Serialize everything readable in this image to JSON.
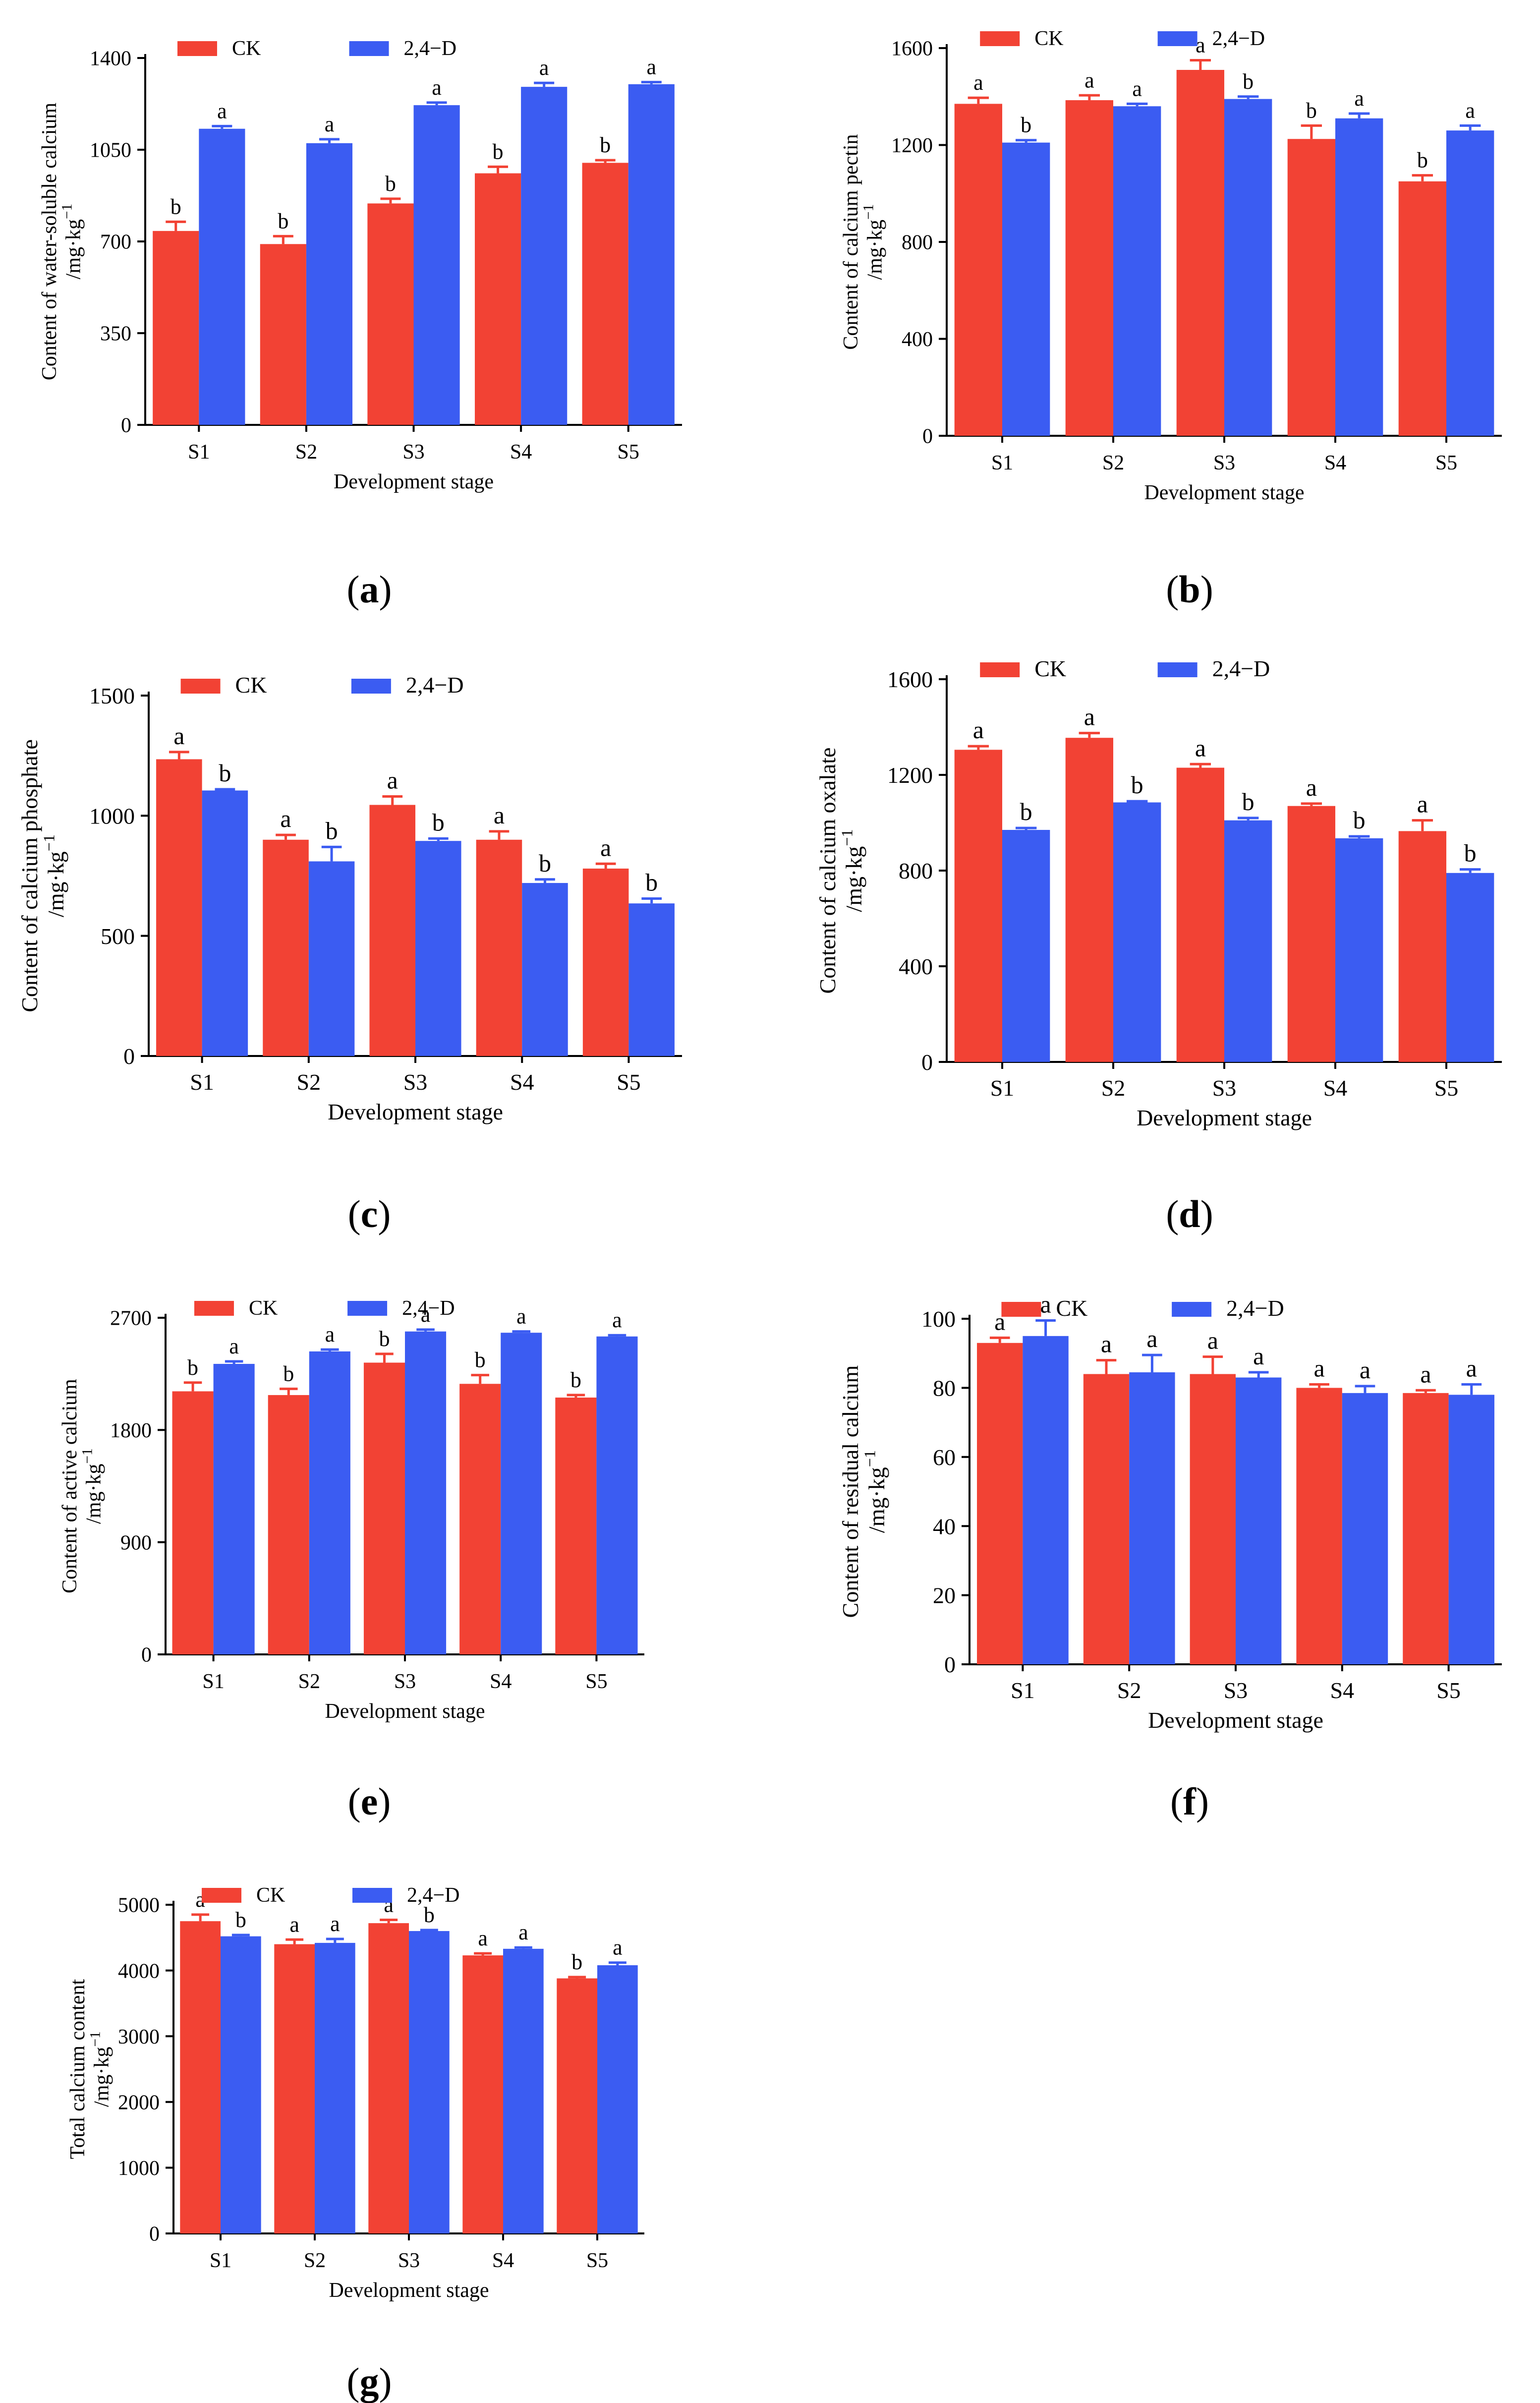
{
  "figure": {
    "colors": {
      "CK": "#f24234",
      "2,4-D": "#3b5cf2"
    },
    "panels": [
      {
        "id": "a",
        "label_open": "(",
        "letter": "a",
        "label_close": ")"
      },
      {
        "id": "b",
        "label_open": "(",
        "letter": "b",
        "label_close": ")"
      },
      {
        "id": "c",
        "label_open": "(",
        "letter": "c",
        "label_close": ")"
      },
      {
        "id": "d",
        "label_open": "(",
        "letter": "d",
        "label_close": ")"
      },
      {
        "id": "e",
        "label_open": "(",
        "letter": "e",
        "label_close": ")"
      },
      {
        "id": "f",
        "label_open": "(",
        "letter": "f",
        "label_close": ")"
      },
      {
        "id": "g",
        "label_open": "(",
        "letter": "g",
        "label_close": ")"
      }
    ]
  },
  "chart_data": [
    {
      "panel": "a",
      "type": "bar",
      "categories": [
        "S1",
        "S2",
        "S3",
        "S4",
        "S5"
      ],
      "xlabel": "Development stage",
      "ylabel_line1": "Content of water-soluble calcium",
      "ylabel_line2": "/mg·kg",
      "ylabel_sup": "−1",
      "ylim": [
        0,
        1400
      ],
      "yticks": [
        0,
        350,
        700,
        1050,
        1400
      ],
      "grid": false,
      "legend": "top",
      "series": [
        {
          "name": "CK",
          "values": [
            740,
            690,
            845,
            960,
            1000
          ],
          "errors": [
            35,
            30,
            18,
            25,
            10
          ],
          "letters": [
            "b",
            "b",
            "b",
            "b",
            "b"
          ]
        },
        {
          "name": "2,4−D",
          "values": [
            1130,
            1075,
            1220,
            1290,
            1300
          ],
          "errors": [
            10,
            15,
            10,
            15,
            8
          ],
          "letters": [
            "a",
            "a",
            "a",
            "a",
            "a"
          ]
        }
      ]
    },
    {
      "panel": "b",
      "type": "bar",
      "categories": [
        "S1",
        "S2",
        "S3",
        "S4",
        "S5"
      ],
      "xlabel": "Development stage",
      "ylabel_line1": "Content of calcium pectin",
      "ylabel_line2": "/mg·kg",
      "ylabel_sup": "−1",
      "ylim": [
        0,
        1600
      ],
      "yticks": [
        0,
        400,
        800,
        1200,
        1600
      ],
      "grid": false,
      "legend": "top",
      "series": [
        {
          "name": "CK",
          "values": [
            1370,
            1385,
            1510,
            1225,
            1050
          ],
          "errors": [
            25,
            20,
            40,
            55,
            25
          ],
          "letters": [
            "a",
            "a",
            "a",
            "b",
            "b"
          ]
        },
        {
          "name": "2,4−D",
          "values": [
            1210,
            1360,
            1390,
            1310,
            1260
          ],
          "errors": [
            10,
            10,
            10,
            20,
            20
          ],
          "letters": [
            "b",
            "a",
            "b",
            "a",
            "a"
          ]
        }
      ]
    },
    {
      "panel": "c",
      "type": "bar",
      "categories": [
        "S1",
        "S2",
        "S3",
        "S4",
        "S5"
      ],
      "xlabel": "Development stage",
      "ylabel_line1": "Content of calcium phosphate",
      "ylabel_line2": "/mg·kg",
      "ylabel_sup": "−1",
      "ylim": [
        0,
        1500
      ],
      "yticks": [
        0,
        500,
        1000,
        1500
      ],
      "grid": false,
      "legend": "top",
      "series": [
        {
          "name": "CK",
          "values": [
            1235,
            900,
            1045,
            900,
            780
          ],
          "errors": [
            30,
            20,
            35,
            35,
            20
          ],
          "letters": [
            "a",
            "a",
            "a",
            "a",
            "a"
          ]
        },
        {
          "name": "2,4−D",
          "values": [
            1105,
            810,
            895,
            720,
            635
          ],
          "errors": [
            5,
            60,
            10,
            15,
            20
          ],
          "letters": [
            "b",
            "b",
            "b",
            "b",
            "b"
          ]
        }
      ]
    },
    {
      "panel": "d",
      "type": "bar",
      "categories": [
        "S1",
        "S2",
        "S3",
        "S4",
        "S5"
      ],
      "xlabel": "Development stage",
      "ylabel_line1": "Content of calcium oxalate",
      "ylabel_line2": "/mg·kg",
      "ylabel_sup": "−1",
      "ylim": [
        0,
        1600
      ],
      "yticks": [
        0,
        400,
        800,
        1200,
        1600
      ],
      "grid": false,
      "legend": "top",
      "series": [
        {
          "name": "CK",
          "values": [
            1305,
            1355,
            1230,
            1070,
            965
          ],
          "errors": [
            15,
            20,
            15,
            10,
            45
          ],
          "letters": [
            "a",
            "a",
            "a",
            "a",
            "a"
          ]
        },
        {
          "name": "2,4−D",
          "values": [
            970,
            1085,
            1010,
            935,
            790
          ],
          "errors": [
            8,
            5,
            10,
            8,
            15
          ],
          "letters": [
            "b",
            "b",
            "b",
            "b",
            "b"
          ]
        }
      ]
    },
    {
      "panel": "e",
      "type": "bar",
      "categories": [
        "S1",
        "S2",
        "S3",
        "S4",
        "S5"
      ],
      "xlabel": "Development stage",
      "ylabel_line1": "Content of active calcium",
      "ylabel_line2": "/mg·kg",
      "ylabel_sup": "−1",
      "ylim": [
        0,
        2700
      ],
      "yticks": [
        0,
        900,
        1800,
        2700
      ],
      "grid": false,
      "legend": "top",
      "series": [
        {
          "name": "CK",
          "values": [
            2110,
            2080,
            2340,
            2170,
            2060
          ],
          "errors": [
            70,
            50,
            70,
            70,
            20
          ],
          "letters": [
            "b",
            "b",
            "b",
            "b",
            "b"
          ]
        },
        {
          "name": "2,4−D",
          "values": [
            2330,
            2430,
            2590,
            2580,
            2550
          ],
          "errors": [
            20,
            15,
            15,
            10,
            10
          ],
          "letters": [
            "a",
            "a",
            "a",
            "a",
            "a"
          ]
        }
      ]
    },
    {
      "panel": "f",
      "type": "bar",
      "categories": [
        "S1",
        "S2",
        "S3",
        "S4",
        "S5"
      ],
      "xlabel": "Development stage",
      "ylabel_line1": "Content of residual calcium",
      "ylabel_line2": "/mg·kg",
      "ylabel_sup": "−1",
      "ylim": [
        0,
        100
      ],
      "yticks": [
        0,
        20,
        40,
        60,
        80,
        100
      ],
      "grid": false,
      "legend": "top",
      "series": [
        {
          "name": "CK",
          "values": [
            93,
            84,
            84,
            80,
            78.5
          ],
          "errors": [
            1.5,
            4,
            5,
            1,
            0.8
          ],
          "letters": [
            "a",
            "a",
            "a",
            "a",
            "a"
          ]
        },
        {
          "name": "2,4−D",
          "values": [
            95,
            84.5,
            83,
            78.5,
            78
          ],
          "errors": [
            4.5,
            5,
            1.5,
            2,
            3
          ],
          "letters": [
            "a",
            "a",
            "a",
            "a",
            "a"
          ]
        }
      ]
    },
    {
      "panel": "g",
      "type": "bar",
      "categories": [
        "S1",
        "S2",
        "S3",
        "S4",
        "S5"
      ],
      "xlabel": "Development stage",
      "ylabel_line1": "Total calcium content",
      "ylabel_line2": "/mg·kg",
      "ylabel_sup": "−1",
      "ylim": [
        0,
        5000
      ],
      "yticks": [
        0,
        1000,
        2000,
        3000,
        4000,
        5000
      ],
      "grid": false,
      "legend": "top",
      "series": [
        {
          "name": "CK",
          "values": [
            4750,
            4400,
            4720,
            4230,
            3880
          ],
          "errors": [
            100,
            70,
            50,
            30,
            20
          ],
          "letters": [
            "a",
            "a",
            "a",
            "a",
            "b"
          ]
        },
        {
          "name": "2,4−D",
          "values": [
            4520,
            4420,
            4600,
            4330,
            4080
          ],
          "errors": [
            20,
            60,
            15,
            20,
            40
          ],
          "letters": [
            "b",
            "a",
            "b",
            "a",
            "a"
          ]
        }
      ]
    }
  ]
}
